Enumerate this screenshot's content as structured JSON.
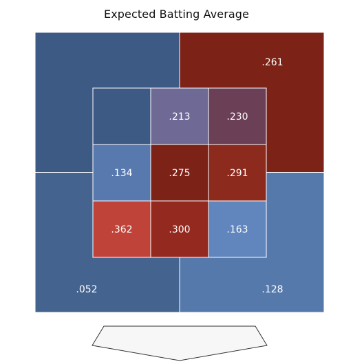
{
  "chart_data": {
    "type": "heatmap",
    "title": "Expected Batting Average",
    "metric": "xBA",
    "outer_zones": [
      {
        "quadrant": "top-left",
        "label": "",
        "color": "#3d5a85"
      },
      {
        "quadrant": "top-right",
        "label": ".261",
        "color": "#7d2217"
      },
      {
        "quadrant": "bottom-left",
        "label": ".052",
        "color": "#45638f"
      },
      {
        "quadrant": "bottom-right",
        "label": ".128",
        "color": "#5679ab"
      }
    ],
    "inner_grid": {
      "rows": 3,
      "cols": 3,
      "cells": [
        {
          "row": 1,
          "col": 1,
          "label": "",
          "color": "#3d5a85"
        },
        {
          "row": 1,
          "col": 2,
          "label": ".213",
          "color": "#6e6a95"
        },
        {
          "row": 1,
          "col": 3,
          "label": ".230",
          "color": "#6b3f56"
        },
        {
          "row": 2,
          "col": 1,
          "label": ".134",
          "color": "#5879ae"
        },
        {
          "row": 2,
          "col": 2,
          "label": ".275",
          "color": "#7d2217"
        },
        {
          "row": 2,
          "col": 3,
          "label": ".291",
          "color": "#8c2a1e"
        },
        {
          "row": 3,
          "col": 1,
          "label": ".362",
          "color": "#c0433a"
        },
        {
          "row": 3,
          "col": 2,
          "label": ".300",
          "color": "#93291f"
        },
        {
          "row": 3,
          "col": 3,
          "label": ".163",
          "color": "#6185bd"
        }
      ]
    },
    "home_plate": {
      "fill": "#f7f7f7",
      "stroke": "#333333"
    },
    "grid_line_color": "#ffffff",
    "label_color": "#ffffff"
  }
}
